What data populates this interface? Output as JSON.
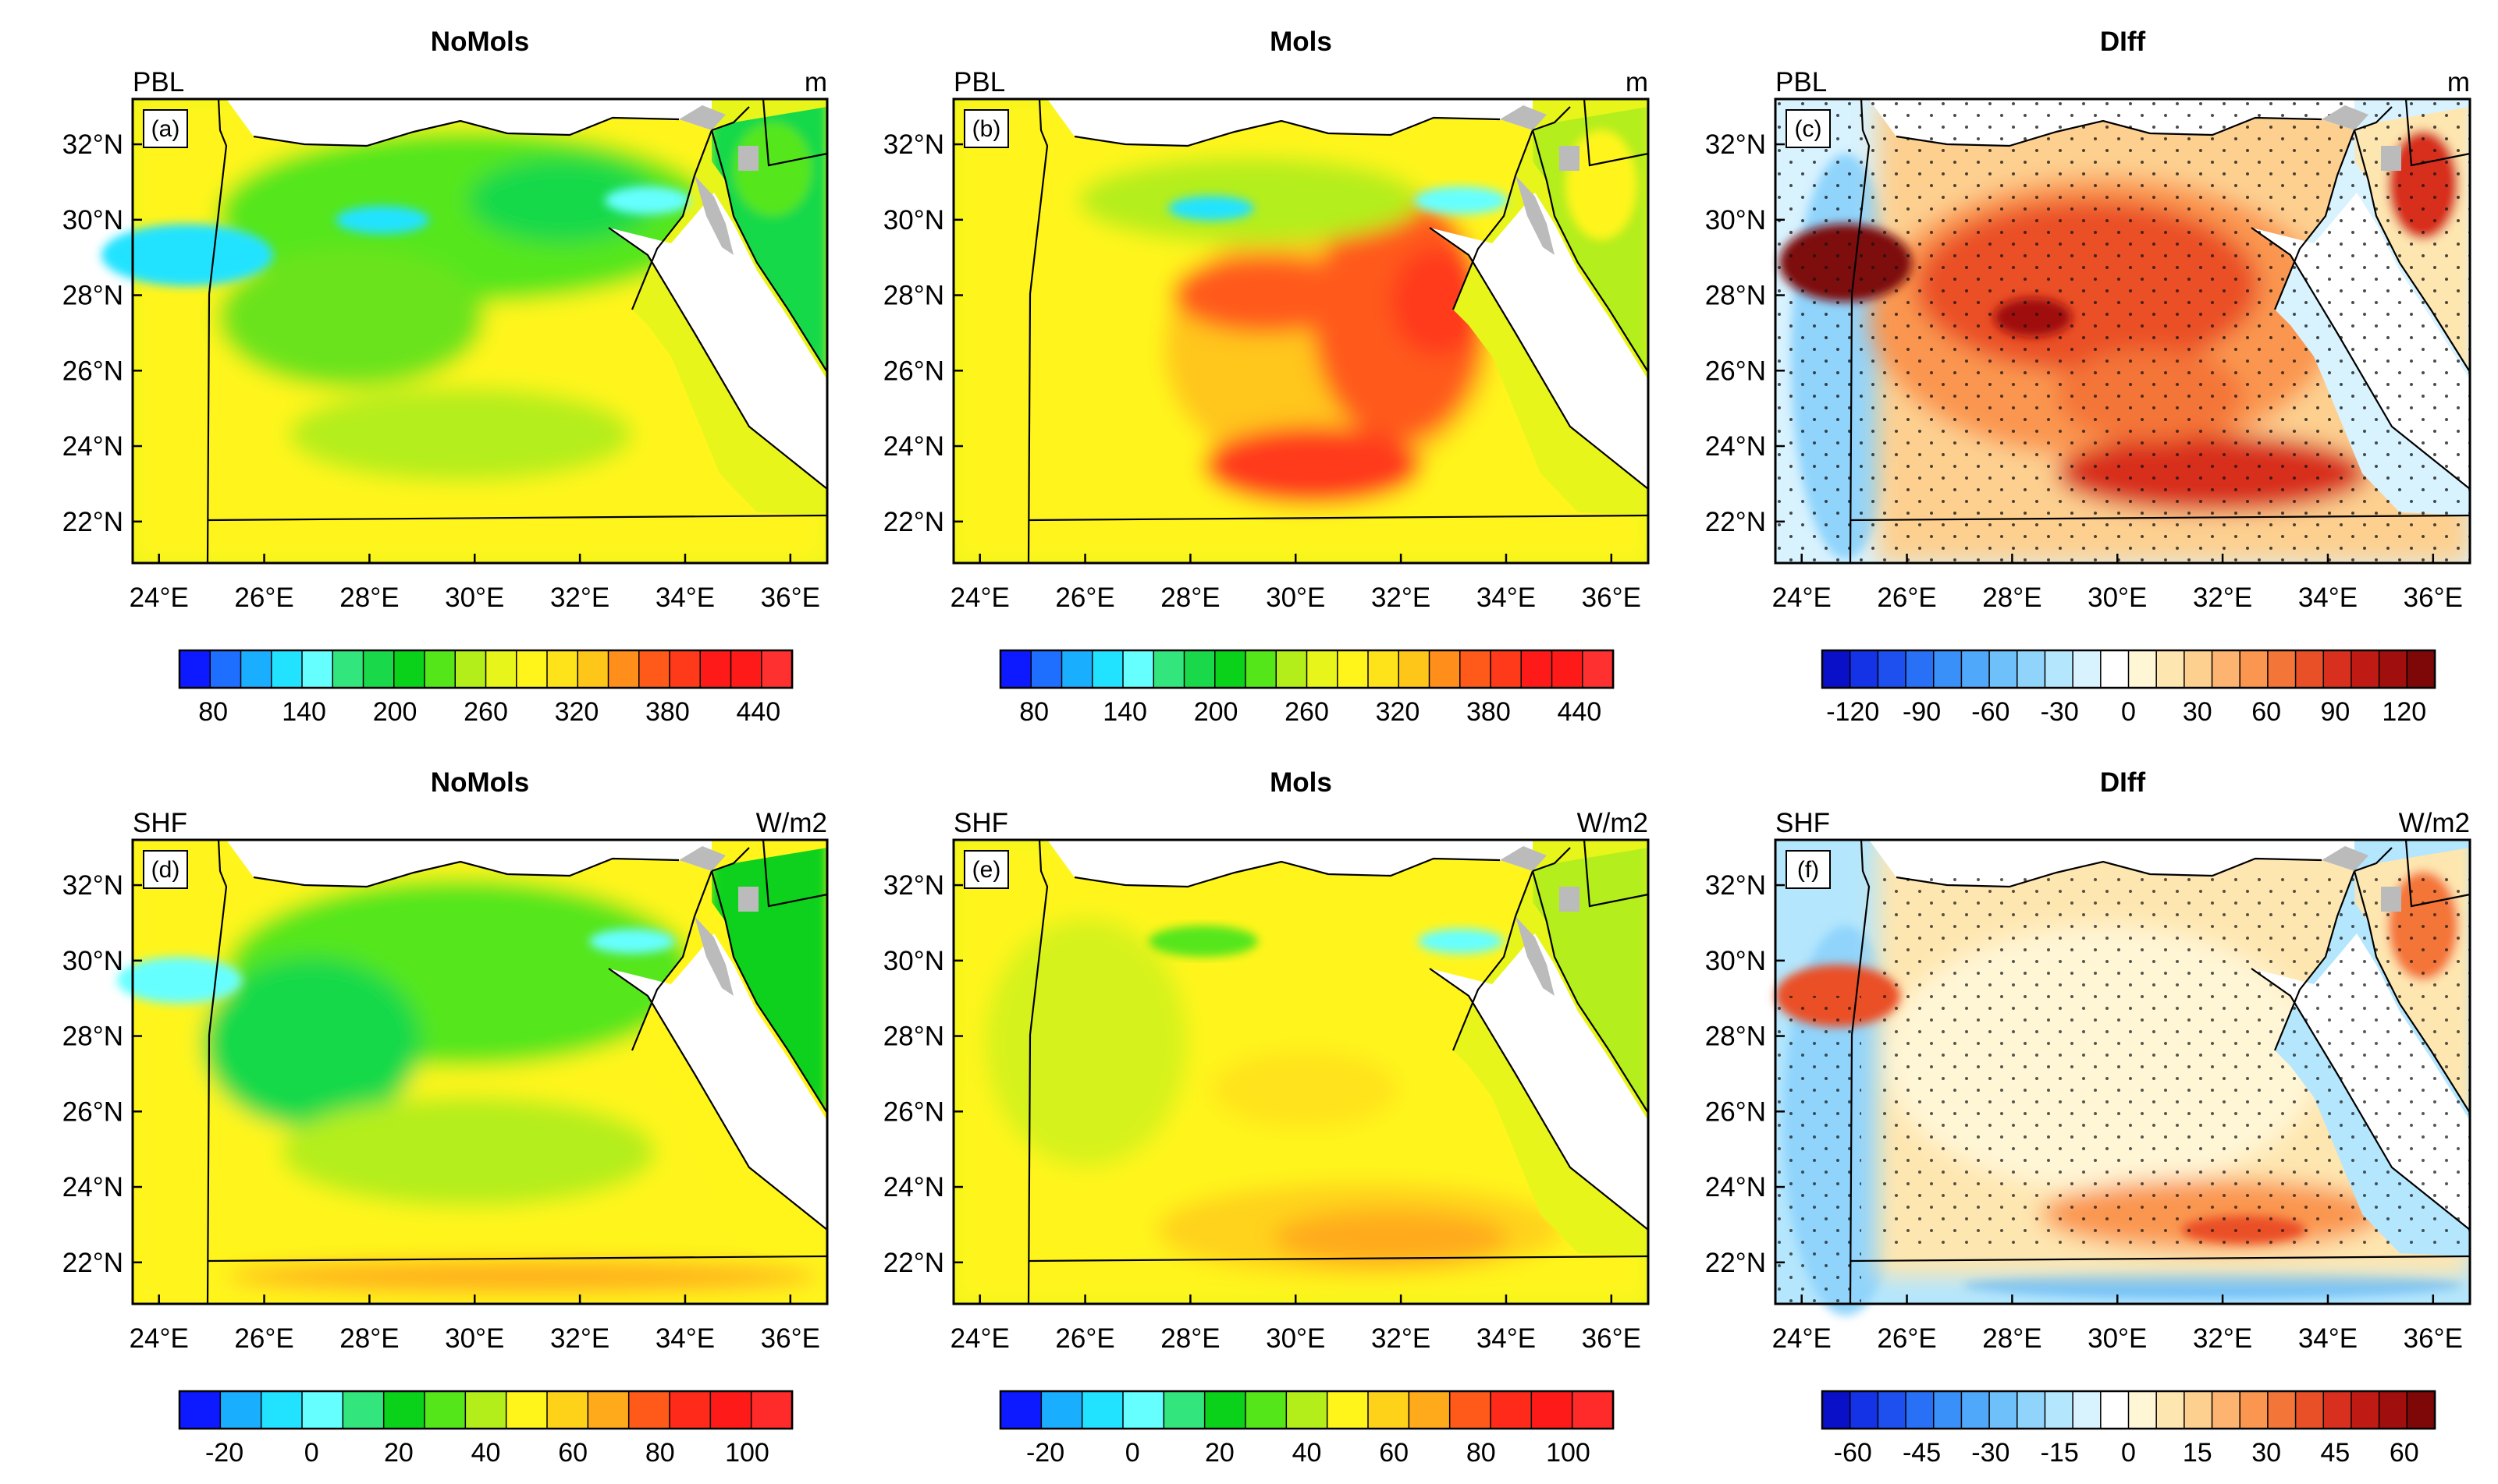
{
  "figure": {
    "panels": [
      {
        "tag": "(a)",
        "title": "NoMols",
        "variable": "PBL",
        "unit": "m",
        "colorbar": "pbl"
      },
      {
        "tag": "(b)",
        "title": "Mols",
        "variable": "PBL",
        "unit": "m",
        "colorbar": "pbl"
      },
      {
        "tag": "(c)",
        "title": "DIff",
        "variable": "PBL",
        "unit": "m",
        "colorbar": "pbl_diff"
      },
      {
        "tag": "(d)",
        "title": "NoMols",
        "variable": "SHF",
        "unit": "W/m2",
        "colorbar": "shf"
      },
      {
        "tag": "(e)",
        "title": "Mols",
        "variable": "SHF",
        "unit": "W/m2",
        "colorbar": "shf"
      },
      {
        "tag": "(f)",
        "title": "DIff",
        "variable": "SHF",
        "unit": "W/m2",
        "colorbar": "shf_diff"
      }
    ],
    "lon_ticks": [
      "24°E",
      "26°E",
      "28°E",
      "30°E",
      "32°E",
      "34°E",
      "36°E"
    ],
    "lat_ticks": [
      "32°N",
      "30°N",
      "28°N",
      "26°N",
      "24°N",
      "22°N"
    ],
    "extent": {
      "lon": [
        23.5,
        36.7
      ],
      "lat": [
        20.9,
        33.2
      ]
    },
    "colorbars": {
      "pbl": {
        "colors": [
          "#0d1aff",
          "#1e6fff",
          "#1aaeff",
          "#22e3ff",
          "#66ffff",
          "#32e57c",
          "#19d94a",
          "#0ad11a",
          "#55e61a",
          "#b4ee1a",
          "#e8f51a",
          "#fff51a",
          "#ffe31a",
          "#ffc61a",
          "#ff8f1a",
          "#ff5a1a",
          "#ff3a1a",
          "#ff1a1a",
          "#ff1a1a",
          "#ff3030"
        ],
        "labels": [
          "80",
          "140",
          "200",
          "260",
          "320",
          "380",
          "440"
        ]
      },
      "pbl_diff": {
        "colors": [
          "#0a10c8",
          "#1432e6",
          "#1e50f0",
          "#2870f5",
          "#3890f8",
          "#50a8fa",
          "#6ec0fb",
          "#90d4fc",
          "#b4e6fd",
          "#d8f2fe",
          "#ffffff",
          "#fff6d6",
          "#fee6b0",
          "#fdd090",
          "#fcb470",
          "#fa9650",
          "#f47538",
          "#ea5028",
          "#d82f1e",
          "#c01a14",
          "#a00e0e",
          "#7e0808"
        ],
        "labels": [
          "-120",
          "-90",
          "-60",
          "-30",
          "0",
          "30",
          "60",
          "90",
          "120"
        ]
      },
      "shf": {
        "colors": [
          "#0d1aff",
          "#1aaeff",
          "#22e3ff",
          "#66ffff",
          "#32e57c",
          "#0ad11a",
          "#55e61a",
          "#b4ee1a",
          "#fff51a",
          "#ffd21a",
          "#ffaa1a",
          "#ff5a1a",
          "#ff2a1a",
          "#ff1a1a",
          "#ff2a2a"
        ],
        "labels": [
          "-20",
          "0",
          "20",
          "40",
          "60",
          "80",
          "100"
        ]
      },
      "shf_diff": {
        "colors": [
          "#0a10c8",
          "#1432e6",
          "#1e50f0",
          "#2870f5",
          "#3890f8",
          "#50a8fa",
          "#6ec0fb",
          "#90d4fc",
          "#b4e6fd",
          "#d8f2fe",
          "#ffffff",
          "#fff6d6",
          "#fee6b0",
          "#fdd090",
          "#fcb470",
          "#fa9650",
          "#f47538",
          "#ea5028",
          "#d82f1e",
          "#c01a14",
          "#a00e0e",
          "#7e0808"
        ],
        "labels": [
          "-60",
          "-45",
          "-30",
          "-15",
          "0",
          "15",
          "30",
          "45",
          "60"
        ]
      }
    },
    "fills": {
      "sea": "#ffffff",
      "missing": "#bbbbbb"
    }
  }
}
